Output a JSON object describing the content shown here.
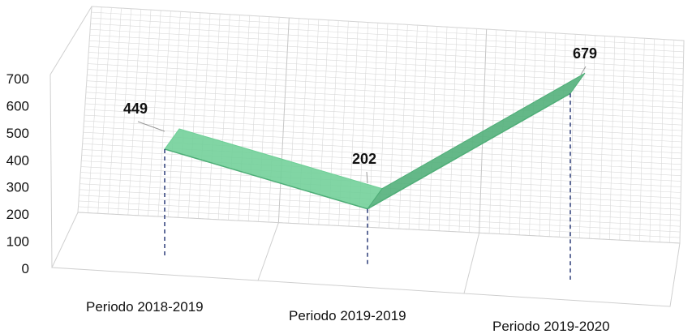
{
  "chart_data": {
    "type": "line",
    "style": "3d-ribbon",
    "categories": [
      "Periodo 2018-2019",
      "Periodo 2019-2019",
      "Periodo 2019-2020"
    ],
    "series": [
      {
        "values": [
          449,
          202,
          679
        ],
        "color": "#6fcf97"
      }
    ],
    "data_labels": [
      "449",
      "202",
      "679"
    ],
    "yticks": [
      "0",
      "100",
      "200",
      "300",
      "400",
      "500",
      "600",
      "700"
    ],
    "ylim": [
      0,
      700
    ],
    "title": "",
    "xlabel": "",
    "ylabel": "",
    "grid": true,
    "legend": "none",
    "drop_lines": true,
    "colors": {
      "ribbon": "#6fcf97",
      "ribbon_dark": "#4fae78",
      "grid": "#d9d9d9",
      "drop_line": "#2e3f7a",
      "frame": "#cfcfcf"
    }
  }
}
